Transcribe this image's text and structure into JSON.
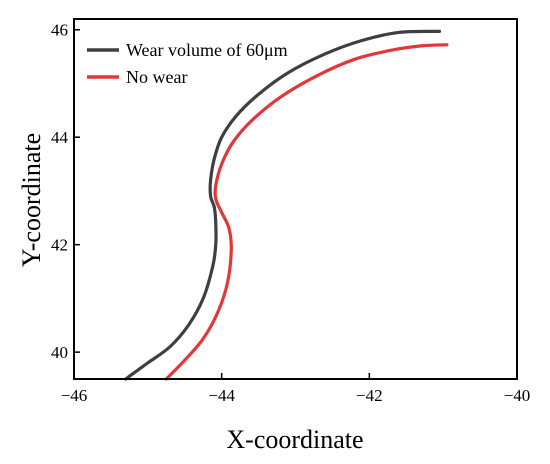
{
  "chart_data": {
    "type": "line",
    "title": "",
    "xlabel": "X-coordinate",
    "ylabel": "Y-coordinate",
    "xlim": [
      -46,
      -40
    ],
    "ylim": [
      39.5,
      46.2
    ],
    "xticks": [
      -46,
      -44,
      -42,
      -40
    ],
    "yticks": [
      40,
      42,
      44,
      46
    ],
    "grid": false,
    "legend_position": "top-left",
    "series": [
      {
        "name": "Wear volume of 60μm",
        "color": "#3f3f3f",
        "x": [
          -45.3,
          -45.0,
          -44.7,
          -44.45,
          -44.25,
          -44.12,
          -44.08,
          -44.08,
          -44.1,
          -44.15,
          -44.15,
          -44.1,
          -44.0,
          -43.8,
          -43.5,
          -43.1,
          -42.6,
          -42.1,
          -41.6,
          -41.05
        ],
        "y": [
          39.5,
          39.8,
          40.1,
          40.5,
          41.0,
          41.6,
          42.0,
          42.4,
          42.7,
          42.9,
          43.2,
          43.6,
          44.0,
          44.4,
          44.8,
          45.2,
          45.55,
          45.8,
          45.95,
          45.97
        ]
      },
      {
        "name": "No wear",
        "color": "#e0383a",
        "x": [
          -44.75,
          -44.5,
          -44.25,
          -44.05,
          -43.92,
          -43.87,
          -43.9,
          -44.0,
          -44.08,
          -44.08,
          -44.0,
          -43.85,
          -43.6,
          -43.2,
          -42.7,
          -42.2,
          -41.7,
          -41.3,
          -40.95
        ],
        "y": [
          39.5,
          39.85,
          40.25,
          40.75,
          41.3,
          41.9,
          42.3,
          42.6,
          42.85,
          43.1,
          43.5,
          43.9,
          44.3,
          44.75,
          45.15,
          45.45,
          45.62,
          45.7,
          45.72
        ]
      }
    ]
  }
}
